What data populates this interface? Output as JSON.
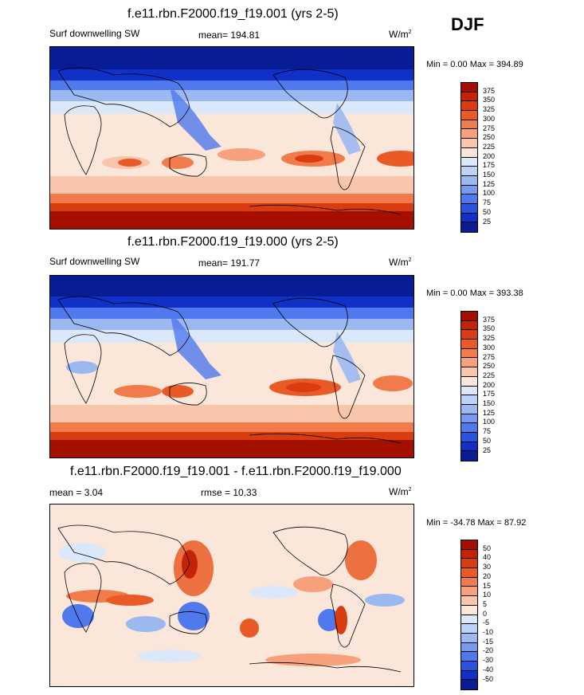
{
  "season": "DJF",
  "panels": [
    {
      "title": "f.e11.rbn.F2000.f19_f19.001 (yrs 2-5)",
      "left_label": "Surf downwelling SW",
      "mid_label": "mean= 194.81",
      "units_base": "W/m",
      "units_sup": "2",
      "minmax": "Min =   0.00 Max = 394.89",
      "levels": [
        "375",
        "350",
        "325",
        "300",
        "275",
        "250",
        "225",
        "200",
        "175",
        "150",
        "125",
        "100",
        "75",
        "50",
        "25"
      ],
      "colors": [
        "#a50f00",
        "#c32408",
        "#d83c10",
        "#ea5a26",
        "#f27b4c",
        "#f6a07c",
        "#f9c6ac",
        "#fbe7da",
        "#dbe8fa",
        "#bcd2f6",
        "#9bb8f1",
        "#779af0",
        "#4f79ec",
        "#2a53e0",
        "#1030c8",
        "#081c96"
      ]
    },
    {
      "title": "f.e11.rbn.F2000.f19_f19.000 (yrs 2-5)",
      "left_label": "Surf downwelling SW",
      "mid_label": "mean= 191.77",
      "units_base": "W/m",
      "units_sup": "2",
      "minmax": "Min =   0.00 Max = 393.38",
      "levels": [
        "375",
        "350",
        "325",
        "300",
        "275",
        "250",
        "225",
        "200",
        "175",
        "150",
        "125",
        "100",
        "75",
        "50",
        "25"
      ],
      "colors": [
        "#a50f00",
        "#c32408",
        "#d83c10",
        "#ea5a26",
        "#f27b4c",
        "#f6a07c",
        "#f9c6ac",
        "#fbe7da",
        "#dbe8fa",
        "#bcd2f6",
        "#9bb8f1",
        "#779af0",
        "#4f79ec",
        "#2a53e0",
        "#1030c8",
        "#081c96"
      ]
    },
    {
      "title": "f.e11.rbn.F2000.f19_f19.001 - f.e11.rbn.F2000.f19_f19.000",
      "left_label": "mean =   3.04",
      "mid_label": "rmse =   10.33",
      "units_base": "W/m",
      "units_sup": "2",
      "minmax": "Min = -34.78 Max =  87.92",
      "levels": [
        "50",
        "40",
        "30",
        "20",
        "15",
        "10",
        "5",
        "0",
        "-5",
        "-10",
        "-15",
        "-20",
        "-30",
        "-40",
        "-50"
      ],
      "colors": [
        "#a50f00",
        "#c32408",
        "#d83c10",
        "#ea5a26",
        "#f27b4c",
        "#f6a07c",
        "#f9c6ac",
        "#fbe7da",
        "#dbe8fa",
        "#bcd2f6",
        "#9bb8f1",
        "#779af0",
        "#4f79ec",
        "#2a53e0",
        "#1030c8",
        "#081c96"
      ]
    }
  ]
}
